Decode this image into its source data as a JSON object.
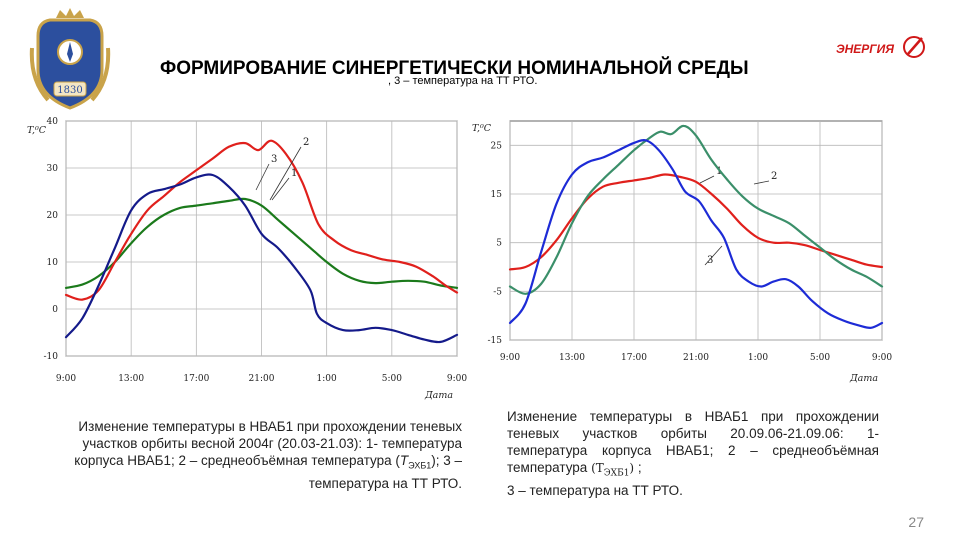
{
  "header": {
    "title": "ФОРМИРОВАНИЕ СИНЕРГЕТИЧЕСКИ НОМИНАЛЬНОЙ СРЕДЫ",
    "title_overlap_text": ", 3 – температура на ТТ РТО.",
    "crest_year": "1830",
    "logo_text": "ЭНЕРГИЯ"
  },
  "colors": {
    "red": "#e0201c",
    "green": "#1b7a1b",
    "navy": "#141a8a",
    "teal": "#3b8f6a",
    "blue": "#1d2bd6",
    "logo_red": "#d01818"
  },
  "caption_left": {
    "text_a": "Изменение температуры в НВАБ1 при прохождении теневых участков орбиты весной 2004г (20.03-21.03): 1- температура корпуса НВАБ1; 2 – среднеобъёмная температура (",
    "symbol": "T",
    "subscript": "ЭХБ1",
    "text_b": "); 3 – температура на ТТ РТО."
  },
  "caption_right": {
    "text_a": "Изменение температуры в НВАБ1 при прохождении теневых участков орбиты 20.09.06-21.09.06: 1- температура корпуса НВАБ1; 2 – среднеобъёмная температура",
    "symbol": "T",
    "subscript": "ЭХБ1",
    "text_b": ";",
    "text_c": "3 – температура на ТТ РТО."
  },
  "page_number": "27",
  "chart_data": [
    {
      "type": "line",
      "title": "",
      "ylabel": "T,⁰C",
      "xlabel": "Дата",
      "x_tick_labels": [
        "9:00",
        "13:00",
        "17:00",
        "21:00",
        "1:00",
        "5:00",
        "9:00"
      ],
      "x_range": [
        9,
        33
      ],
      "y_ticks": [
        -10,
        0,
        10,
        20,
        30,
        40
      ],
      "y_tick_labels": [
        "-10",
        "0",
        "10",
        "20",
        "30",
        "40"
      ],
      "ylim": [
        -10,
        40
      ],
      "grid": true,
      "series": [
        {
          "name": "1",
          "color_key": "green",
          "points": [
            [
              9,
              4.5
            ],
            [
              10,
              5.2
            ],
            [
              11,
              7
            ],
            [
              12,
              10
            ],
            [
              13,
              14
            ],
            [
              14,
              17.5
            ],
            [
              15,
              20
            ],
            [
              16,
              21.5
            ],
            [
              17,
              22
            ],
            [
              18,
              22.5
            ],
            [
              19,
              23
            ],
            [
              20,
              23.4
            ],
            [
              21,
              22
            ],
            [
              22,
              19
            ],
            [
              23,
              16
            ],
            [
              24,
              13
            ],
            [
              25,
              10
            ],
            [
              26,
              7.5
            ],
            [
              27,
              6
            ],
            [
              28,
              5.5
            ],
            [
              29,
              5.8
            ],
            [
              30,
              6
            ],
            [
              31,
              5.8
            ],
            [
              32,
              5
            ],
            [
              33,
              4.5
            ]
          ]
        },
        {
          "name": "2",
          "color_key": "red",
          "points": [
            [
              9,
              3
            ],
            [
              10,
              2
            ],
            [
              11,
              4
            ],
            [
              12,
              10
            ],
            [
              13,
              16
            ],
            [
              14,
              21
            ],
            [
              15,
              24
            ],
            [
              16,
              27
            ],
            [
              17,
              29.5
            ],
            [
              18,
              32
            ],
            [
              19,
              34.5
            ],
            [
              20,
              35.3
            ],
            [
              20.8,
              33.8
            ],
            [
              21.6,
              35.8
            ],
            [
              22.5,
              33
            ],
            [
              23.5,
              27
            ],
            [
              24.5,
              18
            ],
            [
              25.5,
              14.5
            ],
            [
              26.5,
              12.5
            ],
            [
              27.5,
              11.5
            ],
            [
              28.5,
              10.5
            ],
            [
              29.5,
              10
            ],
            [
              30.5,
              9
            ],
            [
              31.5,
              7
            ],
            [
              32.3,
              5
            ],
            [
              33,
              3.5
            ]
          ]
        },
        {
          "name": "3",
          "color_key": "navy",
          "points": [
            [
              9,
              -6
            ],
            [
              10,
              -2
            ],
            [
              11,
              5
            ],
            [
              12,
              13
            ],
            [
              13,
              21
            ],
            [
              14,
              24.5
            ],
            [
              15,
              25.5
            ],
            [
              16,
              26.5
            ],
            [
              17,
              28
            ],
            [
              18,
              28.5
            ],
            [
              19,
              26
            ],
            [
              20,
              22
            ],
            [
              21,
              16
            ],
            [
              22,
              13
            ],
            [
              23,
              9
            ],
            [
              24,
              4
            ],
            [
              24.4,
              -1
            ],
            [
              25,
              -3
            ],
            [
              26,
              -4.5
            ],
            [
              27,
              -4.5
            ],
            [
              28,
              -4
            ],
            [
              29,
              -4.5
            ],
            [
              30,
              -5.5
            ],
            [
              31,
              -6.5
            ],
            [
              32,
              -7
            ],
            [
              33,
              -5.5
            ]
          ]
        }
      ]
    },
    {
      "type": "line",
      "title": "",
      "ylabel": "T,⁰C",
      "xlabel": "Дата",
      "x_tick_labels": [
        "9:00",
        "13:00",
        "17:00",
        "21:00",
        "1:00",
        "5:00",
        "9:00"
      ],
      "x_range": [
        9,
        33
      ],
      "y_ticks": [
        -15,
        -5,
        5,
        15,
        25
      ],
      "y_tick_labels": [
        "-15",
        "-5",
        "5",
        "15",
        "25"
      ],
      "ylim": [
        -15,
        30
      ],
      "grid": true,
      "series": [
        {
          "name": "1",
          "color_key": "red",
          "points": [
            [
              9,
              -0.5
            ],
            [
              10,
              0
            ],
            [
              11,
              2
            ],
            [
              12,
              5.5
            ],
            [
              13,
              10
            ],
            [
              14,
              14
            ],
            [
              15,
              16.5
            ],
            [
              16,
              17.3
            ],
            [
              17,
              17.8
            ],
            [
              18,
              18.3
            ],
            [
              19,
              19
            ],
            [
              20,
              18.5
            ],
            [
              21,
              17.5
            ],
            [
              22,
              15
            ],
            [
              23,
              12
            ],
            [
              24,
              8.5
            ],
            [
              25,
              6
            ],
            [
              26,
              5
            ],
            [
              27,
              5
            ],
            [
              28,
              4.5
            ],
            [
              29,
              3.5
            ],
            [
              30,
              2.5
            ],
            [
              31,
              1.5
            ],
            [
              32,
              0.5
            ],
            [
              33,
              0
            ]
          ]
        },
        {
          "name": "2",
          "color_key": "teal",
          "points": [
            [
              9,
              -4
            ],
            [
              10,
              -5.5
            ],
            [
              11,
              -3.5
            ],
            [
              12,
              2
            ],
            [
              13,
              9
            ],
            [
              14,
              14.5
            ],
            [
              15,
              18
            ],
            [
              16,
              21
            ],
            [
              17,
              24
            ],
            [
              18,
              26.5
            ],
            [
              18.7,
              27.8
            ],
            [
              19.4,
              27.3
            ],
            [
              20.2,
              29
            ],
            [
              21,
              27
            ],
            [
              22,
              22
            ],
            [
              23,
              18
            ],
            [
              24,
              14.5
            ],
            [
              25,
              12
            ],
            [
              26,
              10.5
            ],
            [
              27,
              9
            ],
            [
              28,
              6.5
            ],
            [
              29,
              4
            ],
            [
              30,
              1.5
            ],
            [
              31,
              -0.5
            ],
            [
              32,
              -2
            ],
            [
              33,
              -4
            ]
          ]
        },
        {
          "name": "3",
          "color_key": "blue",
          "points": [
            [
              9,
              -11.5
            ],
            [
              10,
              -7.5
            ],
            [
              11,
              3
            ],
            [
              12,
              13
            ],
            [
              13,
              19
            ],
            [
              14,
              21.5
            ],
            [
              15,
              22.5
            ],
            [
              16,
              24
            ],
            [
              17,
              25.5
            ],
            [
              17.8,
              26
            ],
            [
              18.6,
              24
            ],
            [
              19.5,
              20
            ],
            [
              20.3,
              15.5
            ],
            [
              21.2,
              13.5
            ],
            [
              22,
              9.5
            ],
            [
              22.8,
              6
            ],
            [
              23.6,
              -0.5
            ],
            [
              24.4,
              -3
            ],
            [
              25.2,
              -4
            ],
            [
              26,
              -3
            ],
            [
              26.8,
              -2.5
            ],
            [
              27.6,
              -4
            ],
            [
              28.5,
              -7
            ],
            [
              29.5,
              -9.5
            ],
            [
              30.5,
              -11
            ],
            [
              31.5,
              -12
            ],
            [
              32.3,
              -12.5
            ],
            [
              33,
              -11.5
            ]
          ]
        }
      ]
    }
  ]
}
